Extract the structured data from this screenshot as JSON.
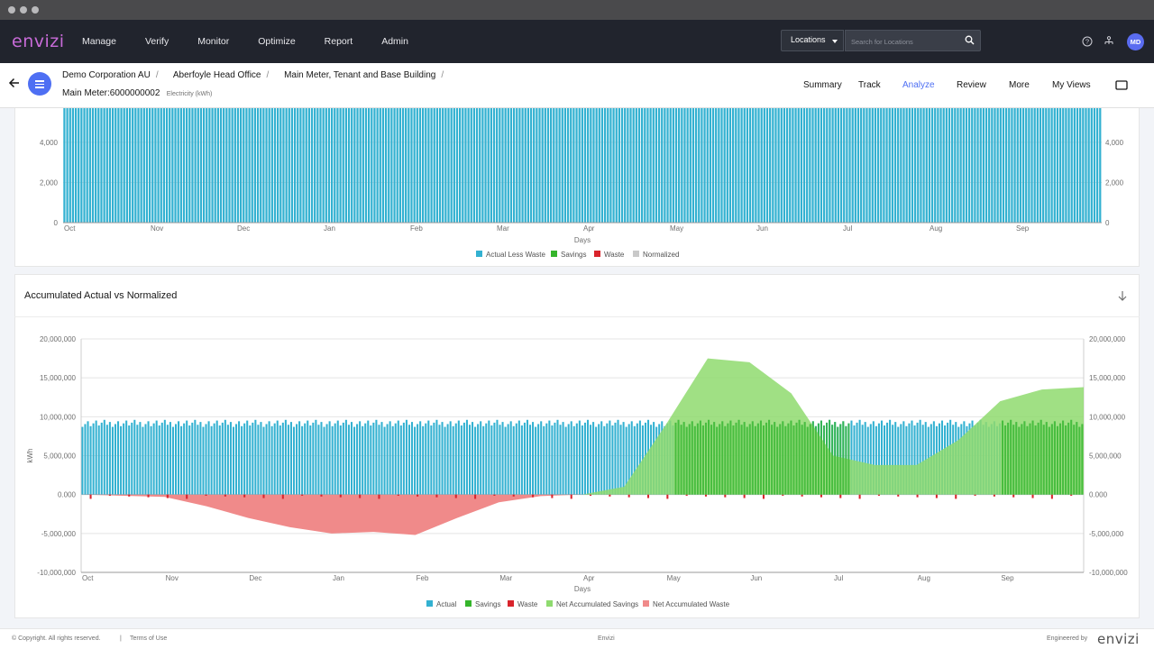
{
  "app": {
    "logo": "envizi",
    "nav": [
      "Manage",
      "Verify",
      "Monitor",
      "Optimize",
      "Report",
      "Admin"
    ],
    "location_select": "Locations",
    "search_placeholder": "Search for Locations",
    "user_initials": "MD"
  },
  "breadcrumb": [
    "Demo Corporation AU",
    "Aberfoyle Head Office",
    "Main Meter, Tenant and Base Building"
  ],
  "meter": {
    "name": "Main Meter:6000000002",
    "type": "Electricity (kWh)"
  },
  "tabs": [
    "Summary",
    "Track",
    "Analyze",
    "Review",
    "More",
    "My Views"
  ],
  "active_tab": "Analyze",
  "colors": {
    "accent": "#4e6ff3",
    "actual": "#33b1d1",
    "savings": "#35b52b",
    "waste": "#d9242c",
    "normalized": "#c9c9c9",
    "net_savings": "#8fdb6f",
    "net_waste": "#f08a8a"
  },
  "footer": {
    "copyright": "© Copyright. All rights reserved.",
    "terms": "Terms of Use",
    "center": "Envizi",
    "engineered": "Engineered by",
    "logo": "envizi"
  },
  "chart_data": [
    {
      "type": "bar",
      "title": "",
      "xlabel": "Days",
      "ylabel": "",
      "x_ticks": [
        "Oct",
        "Nov",
        "Dec",
        "Jan",
        "Feb",
        "Mar",
        "Apr",
        "May",
        "Jun",
        "Jul",
        "Aug",
        "Sep"
      ],
      "y_ticks": [
        "0",
        "2,000",
        "4,000"
      ],
      "y2_ticks": [
        "0",
        "2,000",
        "4,000"
      ],
      "ylim": [
        0,
        5700
      ],
      "legend": [
        "Actual Less Waste",
        "Savings",
        "Waste",
        "Normalized"
      ],
      "legend_position": "bottom",
      "series": [
        {
          "name": "Actual Less Waste",
          "daily_value_approx": 5700,
          "days": 365
        }
      ]
    },
    {
      "type": "bar",
      "title": "Accumulated Actual vs Normalized",
      "xlabel": "Days",
      "ylabel": "kWh",
      "x_ticks": [
        "Oct",
        "Nov",
        "Dec",
        "Jan",
        "Feb",
        "Mar",
        "Apr",
        "May",
        "Jun",
        "Jul",
        "Aug",
        "Sep"
      ],
      "y_ticks": [
        "-10,000,000",
        "-5,000,000",
        "0.000",
        "5,000,000",
        "10,000,000",
        "15,000,000",
        "20,000,000"
      ],
      "y2_ticks": [
        "-10,000,000",
        "-5,000,000",
        "0.000",
        "5,000,000",
        "10,000,000",
        "15,000,000",
        "20,000,000"
      ],
      "ylim": [
        -10000000,
        20000000
      ],
      "legend": [
        "Actual",
        "Savings",
        "Waste",
        "Net Accumulated Savings",
        "Net Accumulated Waste"
      ],
      "legend_position": "bottom",
      "series": [
        {
          "name": "Actual",
          "values_approx": "daily bars ≈ 8,700,000–9,600,000"
        },
        {
          "name": "Net Accumulated Savings",
          "x": [
            0,
            6.5,
            7,
            7.5,
            8,
            8.5,
            9,
            9.5,
            10,
            10.5,
            11,
            11.5,
            12
          ],
          "y": [
            0,
            1000000,
            9000000,
            17500000,
            17000000,
            13000000,
            5000000,
            3800000,
            3800000,
            7000000,
            12000000,
            13500000,
            13800000
          ]
        },
        {
          "name": "Net Accumulated Waste",
          "x": [
            0,
            1,
            1.5,
            2,
            2.5,
            3,
            3.5,
            4,
            4.5,
            5,
            5.5,
            6
          ],
          "y": [
            0,
            -300000,
            -1500000,
            -3000000,
            -4200000,
            -5000000,
            -4800000,
            -5200000,
            -3000000,
            -1000000,
            -200000,
            0
          ]
        }
      ]
    }
  ]
}
